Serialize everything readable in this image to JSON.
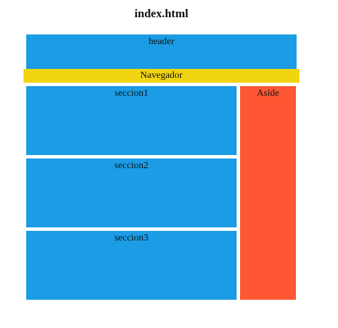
{
  "page": {
    "title": "index.html"
  },
  "layout": {
    "header": "header",
    "nav": "Navegador",
    "sections": [
      "seccion1",
      "seccion2",
      "seccion3"
    ],
    "aside": "Aside"
  },
  "colors": {
    "header": "#1b9ce5",
    "nav": "#f2d511",
    "section": "#1b9ce5",
    "aside": "#ff5733"
  }
}
